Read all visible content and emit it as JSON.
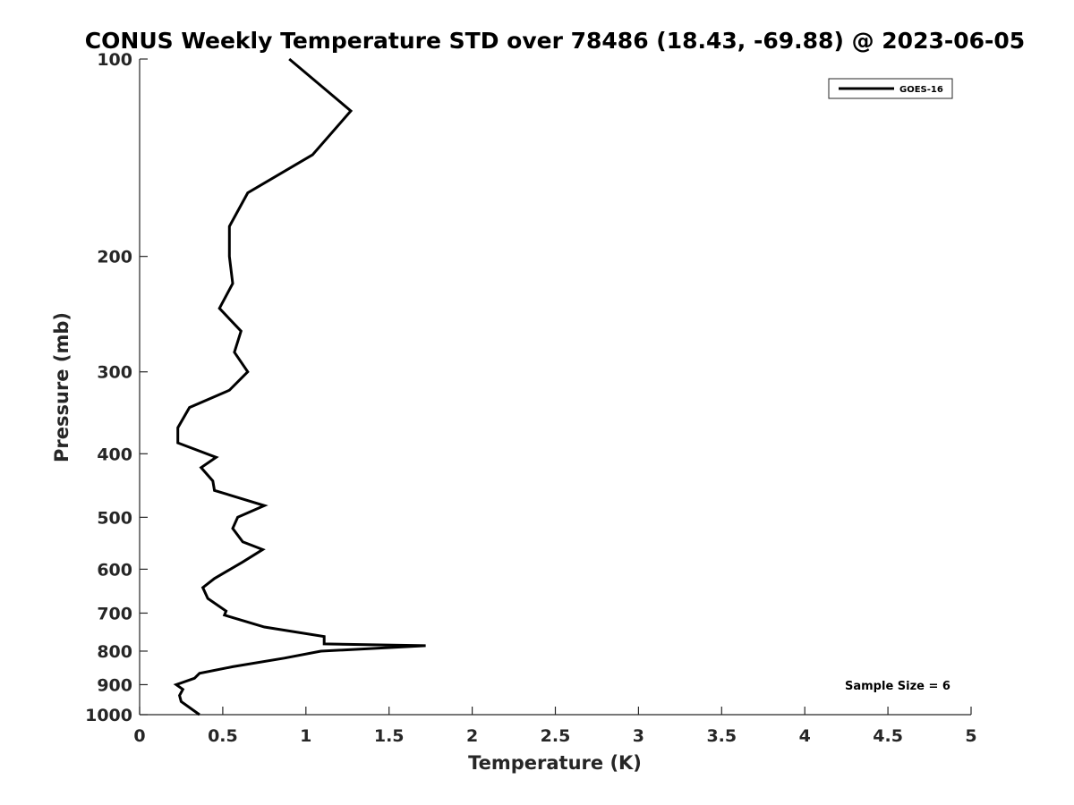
{
  "chart_data": {
    "type": "line",
    "title": "CONUS Weekly Temperature STD over 78486 (18.43, -69.88) @ 2023-06-05",
    "xlabel": "Temperature (K)",
    "ylabel": "Pressure (mb)",
    "xlim": [
      0,
      5
    ],
    "ylim": [
      100,
      1000
    ],
    "y_scale": "log",
    "y_reversed": true,
    "x_ticks": [
      "0",
      "0.5",
      "1",
      "1.5",
      "2",
      "2.5",
      "3",
      "3.5",
      "4",
      "4.5",
      "5"
    ],
    "y_ticks": [
      "100",
      "200",
      "300",
      "400",
      "500",
      "600",
      "700",
      "800",
      "900",
      "1000"
    ],
    "grid": false,
    "legend_position": "top-right",
    "annotation": "Sample Size = 6",
    "series": [
      {
        "name": "GOES-16",
        "color": "#000000",
        "x": [
          0.9,
          1.27,
          1.04,
          0.65,
          0.54,
          0.54,
          0.56,
          0.48,
          0.61,
          0.57,
          0.65,
          0.54,
          0.3,
          0.23,
          0.23,
          0.46,
          0.37,
          0.44,
          0.45,
          0.75,
          0.59,
          0.56,
          0.62,
          0.74,
          0.62,
          0.45,
          0.38,
          0.41,
          0.52,
          0.51,
          0.75,
          1.11,
          1.11,
          1.72,
          1.09,
          0.87,
          0.56,
          0.36,
          0.33,
          0.22,
          0.26,
          0.24,
          0.25,
          0.36
        ],
        "y": [
          100,
          120,
          140,
          160,
          180,
          200,
          220,
          240,
          260,
          280,
          300,
          320,
          340,
          365,
          385,
          405,
          420,
          440,
          455,
          480,
          500,
          520,
          545,
          560,
          585,
          620,
          640,
          665,
          695,
          705,
          735,
          760,
          780,
          785,
          800,
          820,
          845,
          865,
          880,
          900,
          915,
          935,
          955,
          1000
        ]
      }
    ]
  }
}
